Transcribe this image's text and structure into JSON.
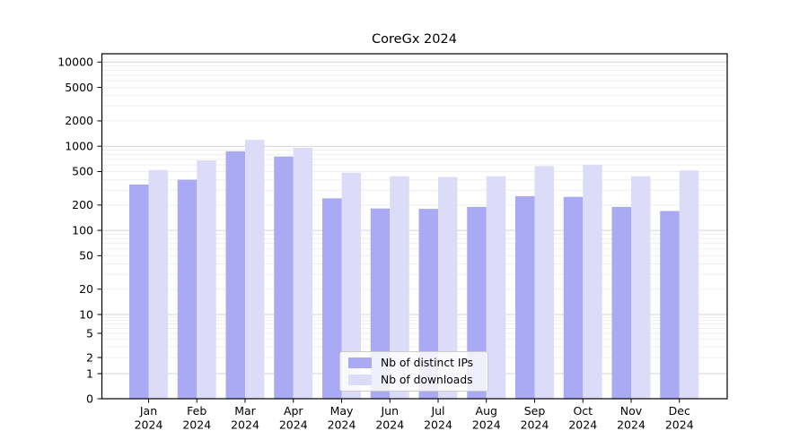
{
  "title": "CoreGx 2024",
  "legend": {
    "items": [
      {
        "label": "Nb of distinct IPs",
        "color": "#a9a9f4"
      },
      {
        "label": "Nb of downloads",
        "color": "#dcdcf9"
      }
    ]
  },
  "axes": {
    "ytick_labels": [
      "0",
      "1",
      "2",
      "5",
      "10",
      "20",
      "50",
      "100",
      "200",
      "500",
      "1000",
      "2000",
      "5000",
      "10000"
    ],
    "xtick_year": "2024"
  },
  "chart_data": {
    "type": "bar",
    "title": "CoreGx 2024",
    "categories": [
      "Jan 2024",
      "Feb 2024",
      "Mar 2024",
      "Apr 2024",
      "May 2024",
      "Jun 2024",
      "Jul 2024",
      "Aug 2024",
      "Sep 2024",
      "Oct 2024",
      "Nov 2024",
      "Dec 2024"
    ],
    "series": [
      {
        "name": "Nb of distinct IPs",
        "color": "#a9a9f4",
        "values": [
          350,
          400,
          870,
          755,
          240,
          182,
          180,
          190,
          255,
          250,
          190,
          170
        ]
      },
      {
        "name": "Nb of downloads",
        "color": "#dcdcf9",
        "values": [
          520,
          680,
          1190,
          960,
          485,
          440,
          430,
          440,
          580,
          600,
          440,
          515
        ]
      }
    ],
    "xlabel": "",
    "ylabel": "",
    "yscale": "symlog",
    "yticks": [
      0,
      1,
      2,
      5,
      10,
      20,
      50,
      100,
      200,
      500,
      1000,
      2000,
      5000,
      10000
    ],
    "ylim": [
      0,
      12500
    ],
    "grid": true,
    "grid_minor": true,
    "legend_position": "lower center",
    "colors": {
      "major_grid": "#d4d4d4",
      "minor_grid": "#efefef",
      "spine": "#000000",
      "tick_text": "#000000"
    }
  }
}
